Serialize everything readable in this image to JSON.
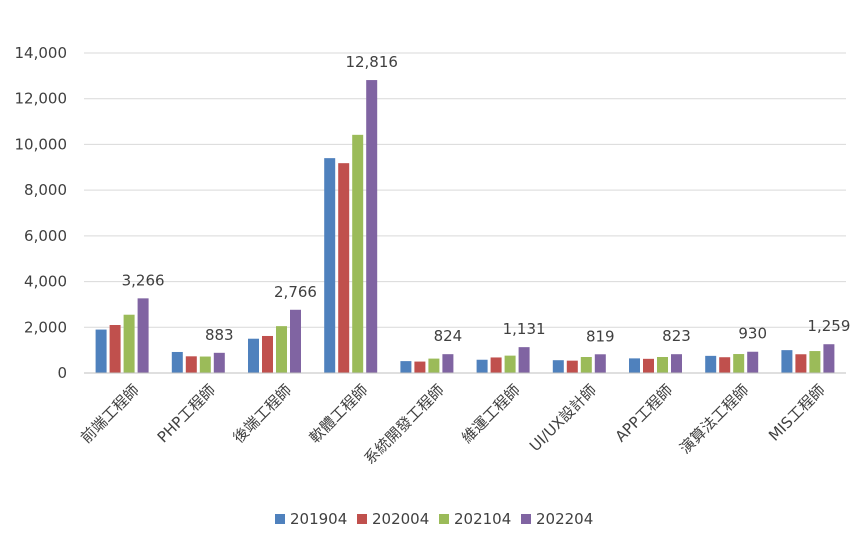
{
  "chart_data": {
    "type": "bar",
    "categories": [
      "前端工程師",
      "PHP工程師",
      "後端工程師",
      "軟體工程師",
      "系統開發工程師",
      "維運工程師",
      "UI/UX設計師",
      "APP工程師",
      "演算法工程師",
      "MIS工程師"
    ],
    "series": [
      {
        "name": "201904",
        "color": "#4F81BD",
        "values": [
          1900,
          920,
          1500,
          9400,
          520,
          580,
          560,
          640,
          750,
          1000
        ]
      },
      {
        "name": "202004",
        "color": "#C0504D",
        "values": [
          2100,
          730,
          1620,
          9180,
          500,
          680,
          540,
          620,
          690,
          820
        ]
      },
      {
        "name": "202104",
        "color": "#9BBB59",
        "values": [
          2550,
          720,
          2050,
          10420,
          630,
          760,
          700,
          700,
          830,
          960
        ]
      },
      {
        "name": "202204",
        "color": "#8064A2",
        "values": [
          3266,
          883,
          2766,
          12816,
          824,
          1131,
          819,
          823,
          930,
          1259
        ]
      }
    ],
    "data_labels": {
      "series": "202204",
      "texts": [
        "3,266",
        "883",
        "2,766",
        "12,816",
        "824",
        "1,131",
        "819",
        "823",
        "930",
        "1,259"
      ]
    },
    "y_ticks": [
      "0",
      "2,000",
      "4,000",
      "6,000",
      "8,000",
      "10,000",
      "12,000",
      "14,000"
    ],
    "ylim": [
      0,
      14000
    ],
    "y_step": 2000,
    "grid": true,
    "legend_position": "bottom",
    "title": "",
    "xlabel": "",
    "ylabel": ""
  }
}
